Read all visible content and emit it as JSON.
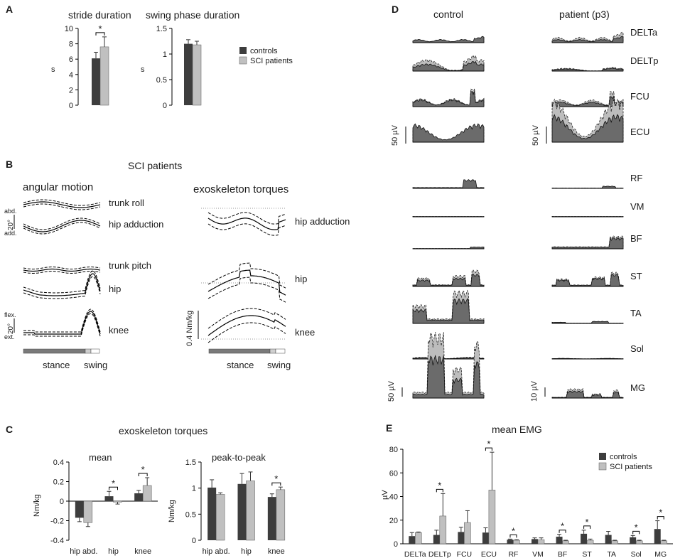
{
  "panels": {
    "A": "A",
    "B": "B",
    "C": "C",
    "D": "D",
    "E": "E"
  },
  "colors": {
    "controls": "#3d3d3d",
    "patients": "#c0c0c0",
    "emg_dark": "#6b6b6b",
    "emg_light": "#bdbdbd"
  },
  "legend": {
    "controls": "controls",
    "patients": "SCI patients"
  },
  "panelA": {
    "stride": {
      "title": "stride duration",
      "ylabel": "s",
      "ticks": [
        "0",
        "2",
        "4",
        "6",
        "8",
        "10"
      ],
      "ylim": [
        0,
        10
      ],
      "controls": 6.1,
      "controls_err": 0.8,
      "patients": 7.6,
      "patients_err": 1.3,
      "star": "*"
    },
    "swing": {
      "title": "swing phase duration",
      "ylabel": "s",
      "ticks": [
        "0",
        "0.5",
        "1",
        "1.5"
      ],
      "ylim": [
        0,
        1.5
      ],
      "controls": 1.2,
      "controls_err": 0.08,
      "patients": 1.18,
      "patients_err": 0.07
    }
  },
  "panelB": {
    "subtitle": "SCI patients",
    "angular_title": "angular motion",
    "torque_title": "exoskeleton torques",
    "angular_traces": [
      "trunk roll",
      "hip adduction",
      "trunk pitch",
      "hip",
      "knee"
    ],
    "torque_traces": [
      "hip adduction",
      "hip",
      "knee"
    ],
    "scale_top": {
      "value": "20°",
      "up": "abd.",
      "down": "add."
    },
    "scale_bottom": {
      "value": "20°",
      "up": "flex.",
      "down": "ext."
    },
    "torque_scale": "0.4 Nm/kg",
    "phase": {
      "stance": "stance",
      "swing": "swing"
    }
  },
  "chart_data": [
    {
      "type": "bar",
      "panel": "A",
      "title": "stride duration",
      "ylabel": "s",
      "ylim": [
        0,
        10
      ],
      "categories": [
        ""
      ],
      "series": [
        {
          "name": "controls",
          "values": [
            6.1
          ],
          "err": [
            0.8
          ]
        },
        {
          "name": "SCI patients",
          "values": [
            7.6
          ],
          "err": [
            1.3
          ]
        }
      ]
    },
    {
      "type": "bar",
      "panel": "A",
      "title": "swing phase duration",
      "ylabel": "s",
      "ylim": [
        0,
        1.5
      ],
      "categories": [
        ""
      ],
      "series": [
        {
          "name": "controls",
          "values": [
            1.2
          ],
          "err": [
            0.08
          ]
        },
        {
          "name": "SCI patients",
          "values": [
            1.18
          ],
          "err": [
            0.07
          ]
        }
      ]
    },
    {
      "type": "bar",
      "panel": "C",
      "title": "mean",
      "ylabel": "Nm/kg",
      "ylim": [
        -0.4,
        0.4
      ],
      "ticks": [
        "-0.4",
        "-0.2",
        "0",
        "0.2",
        "0.4"
      ],
      "categories": [
        "hip abd.",
        "hip",
        "knee"
      ],
      "series": [
        {
          "name": "controls",
          "values": [
            -0.17,
            0.05,
            0.08
          ],
          "err": [
            0.04,
            0.05,
            0.03
          ]
        },
        {
          "name": "SCI patients",
          "values": [
            -0.22,
            -0.01,
            0.16
          ],
          "err": [
            0.04,
            0.02,
            0.08
          ]
        }
      ],
      "stars": [
        false,
        true,
        true
      ]
    },
    {
      "type": "bar",
      "panel": "C",
      "title": "peak-to-peak",
      "ylabel": "Nm/kg",
      "ylim": [
        0,
        1.5
      ],
      "ticks": [
        "0",
        "0.5",
        "1",
        "1.5"
      ],
      "categories": [
        "hip abd.",
        "hip",
        "knee"
      ],
      "series": [
        {
          "name": "controls",
          "values": [
            1.01,
            1.08,
            0.83
          ],
          "err": [
            0.15,
            0.2,
            0.06
          ]
        },
        {
          "name": "SCI patients",
          "values": [
            0.88,
            1.14,
            0.97
          ],
          "err": [
            0.03,
            0.17,
            0.05
          ]
        }
      ],
      "stars": [
        false,
        false,
        true
      ]
    },
    {
      "type": "bar",
      "panel": "E",
      "title": "mean EMG",
      "ylabel": "µV",
      "ylim": [
        0,
        80
      ],
      "ticks": [
        "0",
        "20",
        "40",
        "60",
        "80"
      ],
      "categories": [
        "DELTa",
        "DELTp",
        "FCU",
        "ECU",
        "RF",
        "VM",
        "BF",
        "ST",
        "TA",
        "Sol",
        "MG"
      ],
      "series": [
        {
          "name": "controls",
          "values": [
            6.5,
            7.5,
            10,
            9.5,
            3.5,
            4,
            6,
            8.5,
            7.5,
            5.5,
            12.5
          ],
          "err": [
            3,
            4,
            4,
            4,
            0.5,
            1,
            2,
            3,
            3,
            1.5,
            7
          ]
        },
        {
          "name": "SCI patients",
          "values": [
            9.5,
            23.5,
            18,
            45.5,
            3,
            3.5,
            2.5,
            3,
            2.5,
            2.5,
            2.5
          ],
          "err": [
            0.5,
            19,
            10,
            32,
            0.5,
            1.5,
            0.5,
            1,
            0.5,
            0.5,
            0.5
          ]
        }
      ],
      "stars": [
        false,
        true,
        false,
        true,
        true,
        false,
        true,
        true,
        false,
        true,
        true
      ]
    }
  ],
  "panelC": {
    "title": "exoskeleton torques",
    "mean_title": "mean",
    "p2p_title": "peak-to-peak",
    "ylabel": "Nm/kg"
  },
  "panelD": {
    "control_title": "control",
    "patient_title": "patient (p3)",
    "muscles": [
      "DELTa",
      "DELTp",
      "FCU",
      "ECU",
      "RF",
      "VM",
      "BF",
      "ST",
      "TA",
      "Sol",
      "MG"
    ],
    "scales": {
      "control_upper": "50 µV",
      "patient_upper": "50 µV",
      "control_lower": "50 µV",
      "patient_lower": "10 µV"
    }
  },
  "panelE": {
    "title": "mean EMG",
    "ylabel": "µV",
    "star": "*"
  }
}
